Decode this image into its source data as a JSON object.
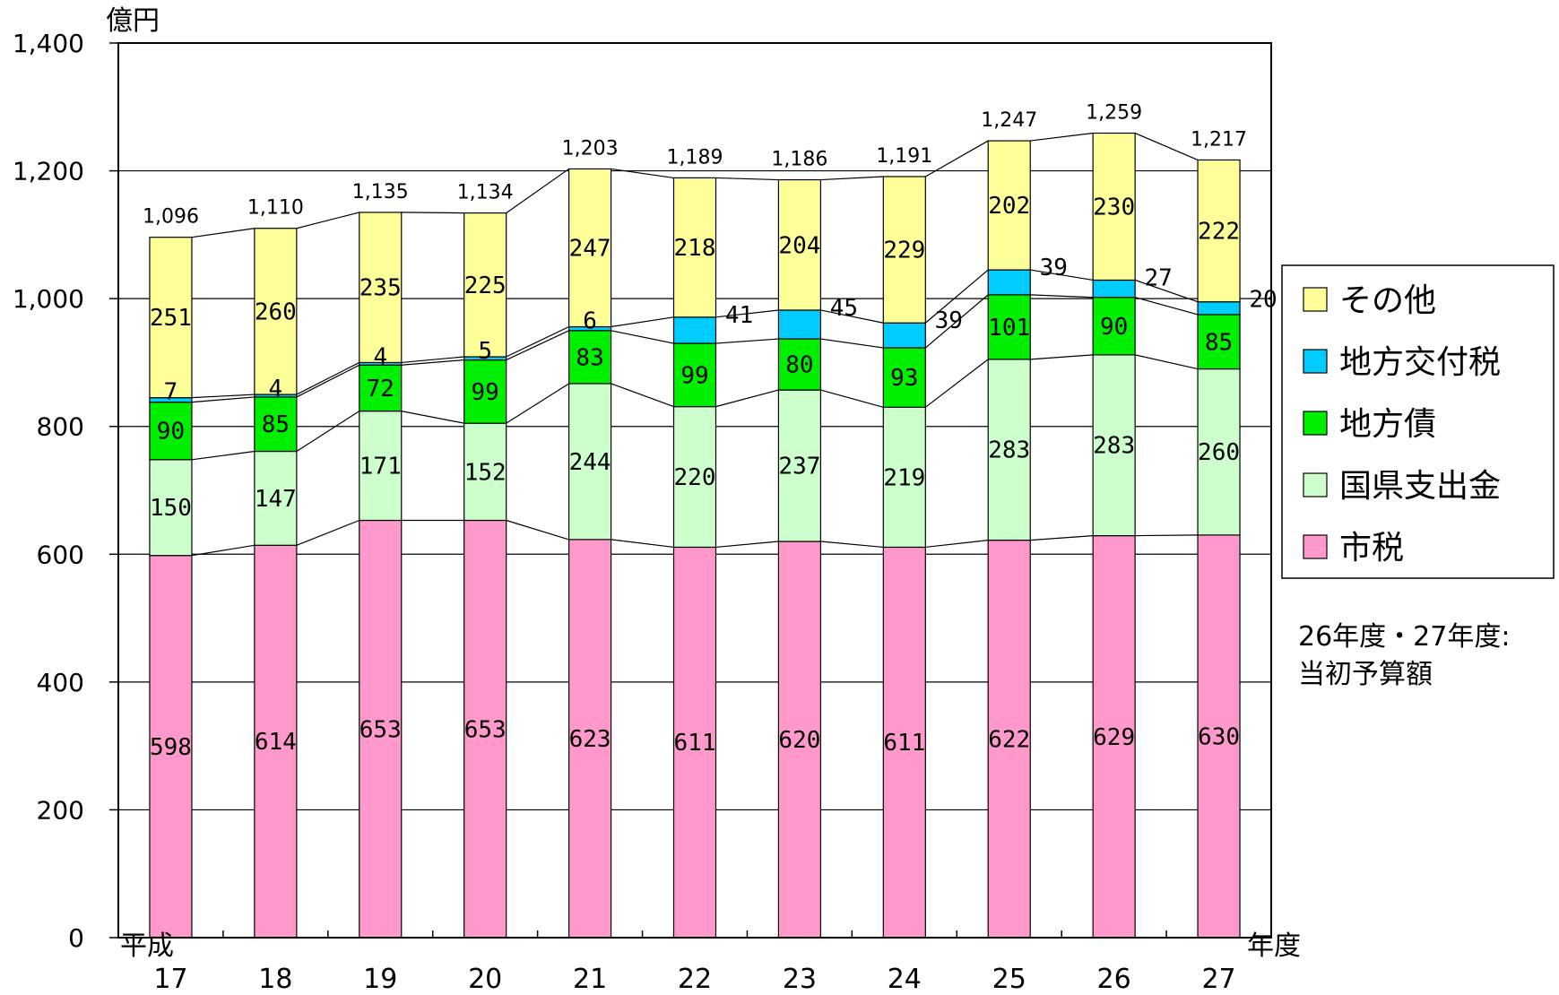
{
  "chart_data": {
    "type": "bar",
    "stacked": true,
    "ylabel": "億円",
    "xlabel": "年度",
    "x_prefix": "平成",
    "ylim": [
      0,
      1400
    ],
    "yticks": [
      "0",
      "200",
      "400",
      "600",
      "800",
      "1,000",
      "1,200",
      "1,400"
    ],
    "grid": true,
    "legend_position": "right",
    "categories": [
      "17",
      "18",
      "19",
      "20",
      "21",
      "22",
      "23",
      "24",
      "25",
      "26",
      "27"
    ],
    "series": [
      {
        "name": "市税",
        "color": "#ff99cc",
        "values": [
          598,
          614,
          653,
          653,
          623,
          611,
          620,
          611,
          622,
          629,
          630
        ]
      },
      {
        "name": "国県支出金",
        "color": "#ccffcc",
        "values": [
          150,
          147,
          171,
          152,
          244,
          220,
          237,
          219,
          283,
          283,
          260
        ]
      },
      {
        "name": "地方債",
        "color": "#00ee00",
        "values": [
          90,
          85,
          72,
          99,
          83,
          99,
          80,
          93,
          101,
          90,
          85
        ]
      },
      {
        "name": "地方交付税",
        "color": "#00ccff",
        "values": [
          7,
          4,
          4,
          5,
          6,
          41,
          45,
          39,
          39,
          27,
          20
        ]
      },
      {
        "name": "その他",
        "color": "#ffff99",
        "values": [
          251,
          260,
          235,
          225,
          247,
          218,
          204,
          229,
          202,
          230,
          222
        ]
      }
    ],
    "totals": [
      "1,096",
      "1,110",
      "1,135",
      "1,134",
      "1,203",
      "1,189",
      "1,186",
      "1,191",
      "1,247",
      "1,259",
      "1,217"
    ],
    "annotation": [
      "26年度・27年度:",
      "当初予算額"
    ]
  }
}
